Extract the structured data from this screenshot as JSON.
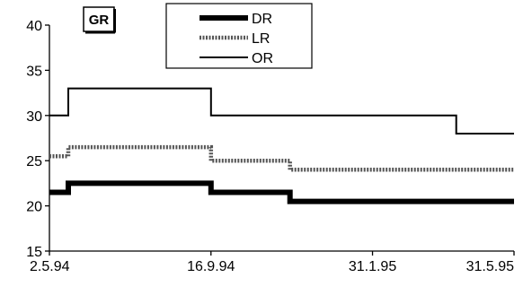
{
  "chart_data": {
    "type": "line",
    "title": "",
    "panel_label": "GR",
    "xlabel": "",
    "ylabel": "",
    "ylim": [
      15,
      40
    ],
    "yticks": [
      15,
      20,
      25,
      30,
      35,
      40
    ],
    "xlim": [
      "1994-05-02",
      "1995-05-31"
    ],
    "xticks": [
      {
        "date": "1994-05-02",
        "label": "2.5.94"
      },
      {
        "date": "1994-09-16",
        "label": "16.9.94"
      },
      {
        "date": "1995-01-31",
        "label": "31.1.95"
      },
      {
        "date": "1995-05-31",
        "label": "31.5.95"
      }
    ],
    "grid": false,
    "legend_position": "top-center",
    "step": true,
    "series": [
      {
        "name": "DR",
        "color": "#000000",
        "style": "solid-thick",
        "points": [
          {
            "x": "1994-05-02",
            "y": 21.5
          },
          {
            "x": "1994-05-18",
            "y": 22.5
          },
          {
            "x": "1994-09-16",
            "y": 21.5
          },
          {
            "x": "1994-11-22",
            "y": 20.5
          },
          {
            "x": "1995-05-31",
            "y": 20.5
          }
        ]
      },
      {
        "name": "LR",
        "color": "#555555",
        "style": "dotted-thick",
        "points": [
          {
            "x": "1994-05-02",
            "y": 25.5
          },
          {
            "x": "1994-05-18",
            "y": 26.5
          },
          {
            "x": "1994-09-16",
            "y": 25.0
          },
          {
            "x": "1994-11-22",
            "y": 24.0
          },
          {
            "x": "1995-05-31",
            "y": 24.0
          }
        ]
      },
      {
        "name": "OR",
        "color": "#000000",
        "style": "solid-thin",
        "points": [
          {
            "x": "1994-05-02",
            "y": 30.0
          },
          {
            "x": "1994-05-18",
            "y": 33.0
          },
          {
            "x": "1994-09-16",
            "y": 30.0
          },
          {
            "x": "1995-04-12",
            "y": 28.0
          },
          {
            "x": "1995-05-31",
            "y": 28.0
          }
        ]
      }
    ]
  }
}
